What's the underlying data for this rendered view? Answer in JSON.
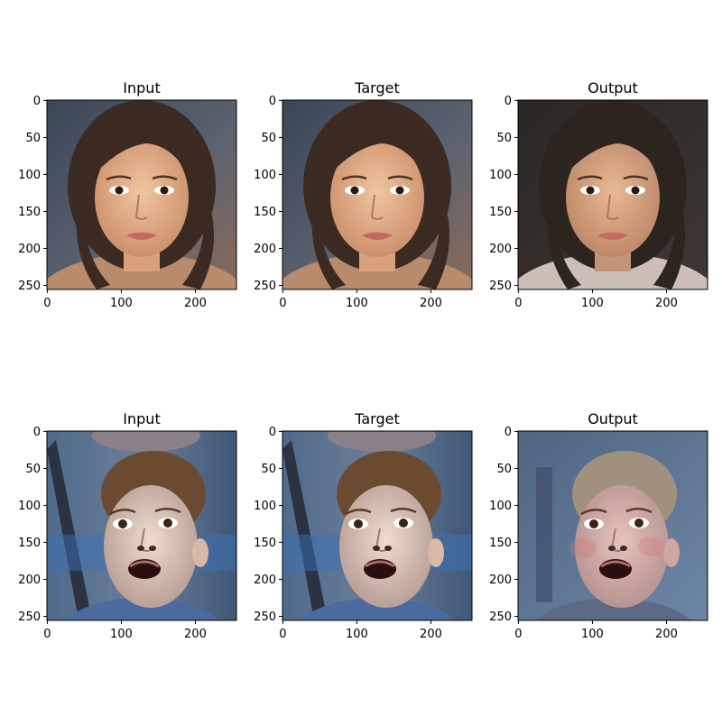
{
  "figure": {
    "panels": [
      {
        "title": "Input",
        "subject": "face-1",
        "variant": "input"
      },
      {
        "title": "Target",
        "subject": "face-1",
        "variant": "target"
      },
      {
        "title": "Output",
        "subject": "face-1",
        "variant": "output"
      },
      {
        "title": "Input",
        "subject": "face-2",
        "variant": "input"
      },
      {
        "title": "Target",
        "subject": "face-2",
        "variant": "target"
      },
      {
        "title": "Output",
        "subject": "face-2",
        "variant": "output"
      }
    ],
    "x_ticks": [
      0,
      100,
      200
    ],
    "y_ticks": [
      0,
      50,
      100,
      150,
      200,
      250
    ],
    "axis_range": [
      0,
      256
    ]
  }
}
